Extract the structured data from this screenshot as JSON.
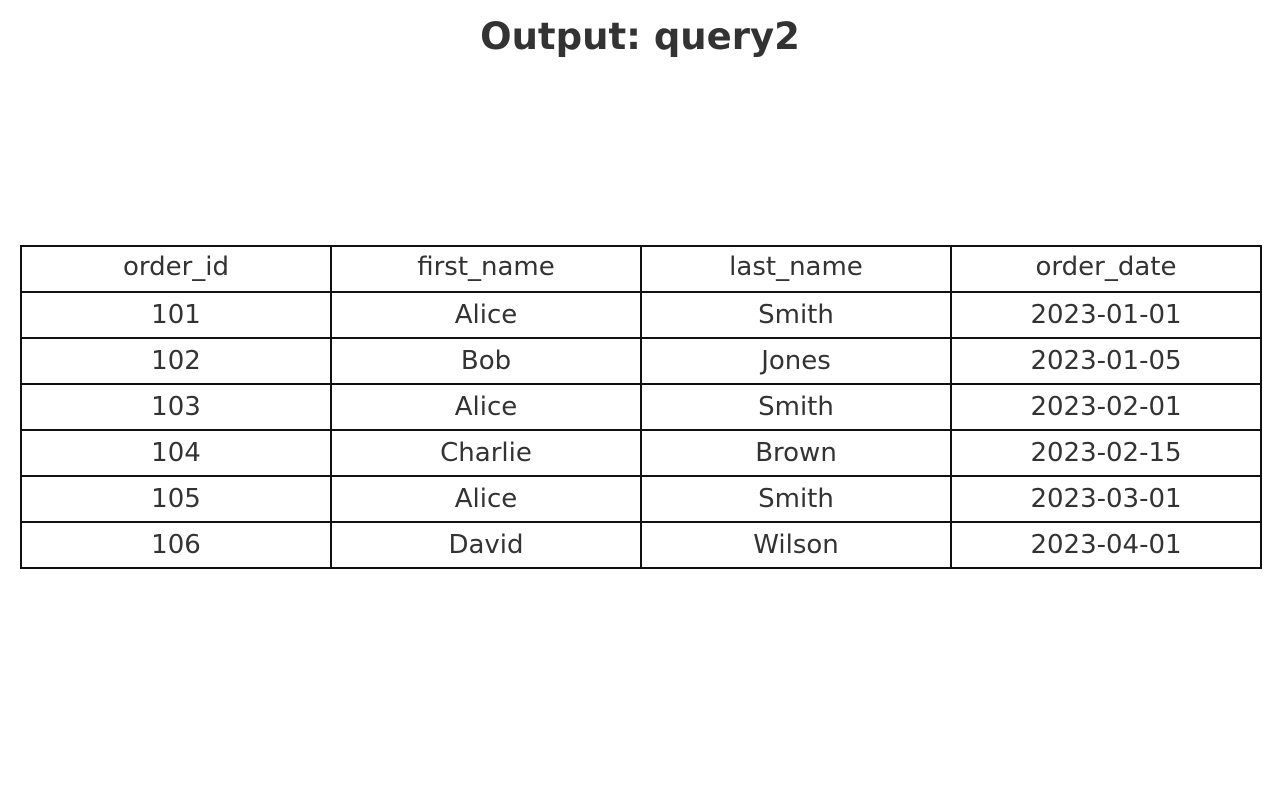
{
  "title": "Output: query2",
  "chart_data": {
    "type": "table",
    "title": "Output: query2",
    "columns": [
      "order_id",
      "first_name",
      "last_name",
      "order_date"
    ],
    "rows": [
      [
        "101",
        "Alice",
        "Smith",
        "2023-01-01"
      ],
      [
        "102",
        "Bob",
        "Jones",
        "2023-01-05"
      ],
      [
        "103",
        "Alice",
        "Smith",
        "2023-02-01"
      ],
      [
        "104",
        "Charlie",
        "Brown",
        "2023-02-15"
      ],
      [
        "105",
        "Alice",
        "Smith",
        "2023-03-01"
      ],
      [
        "106",
        "David",
        "Wilson",
        "2023-04-01"
      ]
    ]
  }
}
